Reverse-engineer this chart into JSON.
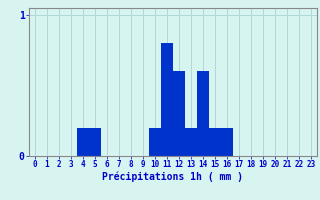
{
  "categories": [
    0,
    1,
    2,
    3,
    4,
    5,
    6,
    7,
    8,
    9,
    10,
    11,
    12,
    13,
    14,
    15,
    16,
    17,
    18,
    19,
    20,
    21,
    22,
    23
  ],
  "values": [
    0,
    0,
    0,
    0,
    0.2,
    0.2,
    0,
    0,
    0,
    0,
    0.2,
    0.8,
    0.6,
    0.2,
    0.6,
    0.2,
    0.2,
    0,
    0,
    0,
    0,
    0,
    0,
    0
  ],
  "bar_color": "#0033cc",
  "background_color": "#d8f4f0",
  "grid_color": "#b0d8d8",
  "axis_color": "#888888",
  "text_color": "#0000cc",
  "xlabel": "Précipitations 1h ( mm )",
  "ylim": [
    0,
    1.05
  ],
  "yticks": [
    0,
    1
  ],
  "xlabel_fontsize": 7,
  "tick_fontsize": 5.5
}
